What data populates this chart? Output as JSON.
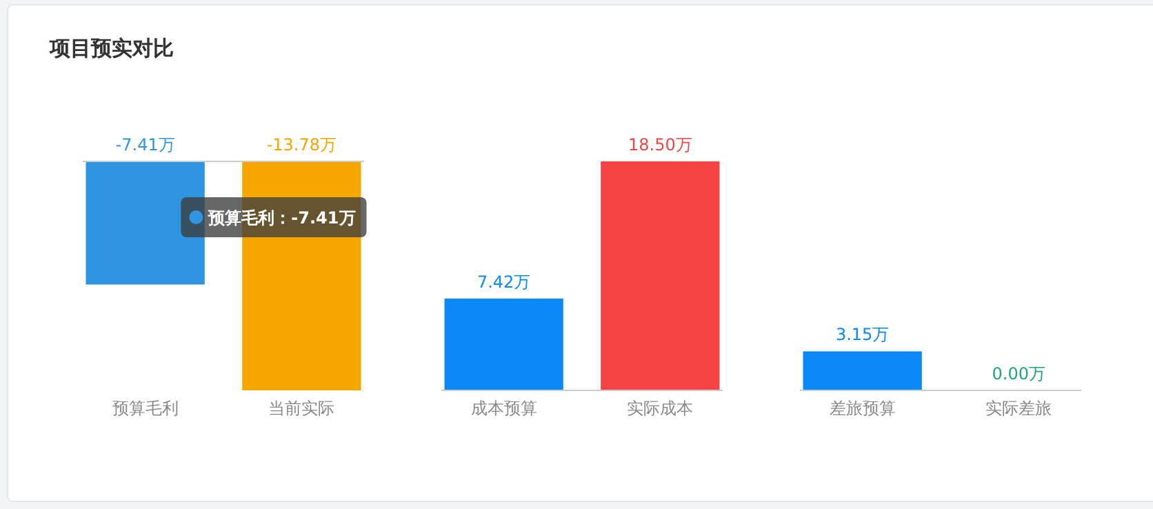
{
  "chart_data": [
    {
      "type": "bar",
      "title": "项目预实对比",
      "categories": [
        "预算毛利",
        "当前实际"
      ],
      "values": [
        -7.41,
        -13.78
      ],
      "colors": [
        "#3095e0",
        "#f5a700"
      ],
      "value_labels": [
        "-7.41万",
        "-13.78万"
      ],
      "tick_labels": "x",
      "annotations": [
        "预算毛利：-7.41万"
      ]
    },
    {
      "type": "bar",
      "categories": [
        "成本预算",
        "实际成本"
      ],
      "values": [
        7.42,
        18.5
      ],
      "colors": [
        "#0a88f8",
        "#f44444"
      ],
      "value_labels": [
        "7.42万",
        "18.50万"
      ],
      "tick_labels": "x"
    },
    {
      "type": "bar",
      "categories": [
        "差旅预算",
        "实际差旅"
      ],
      "values": [
        3.15,
        0
      ],
      "colors": [
        "#0a88f8",
        "#1aa86e"
      ],
      "value_labels": [
        "3.15万",
        "0.00万"
      ],
      "tick_labels": "x"
    }
  ]
}
